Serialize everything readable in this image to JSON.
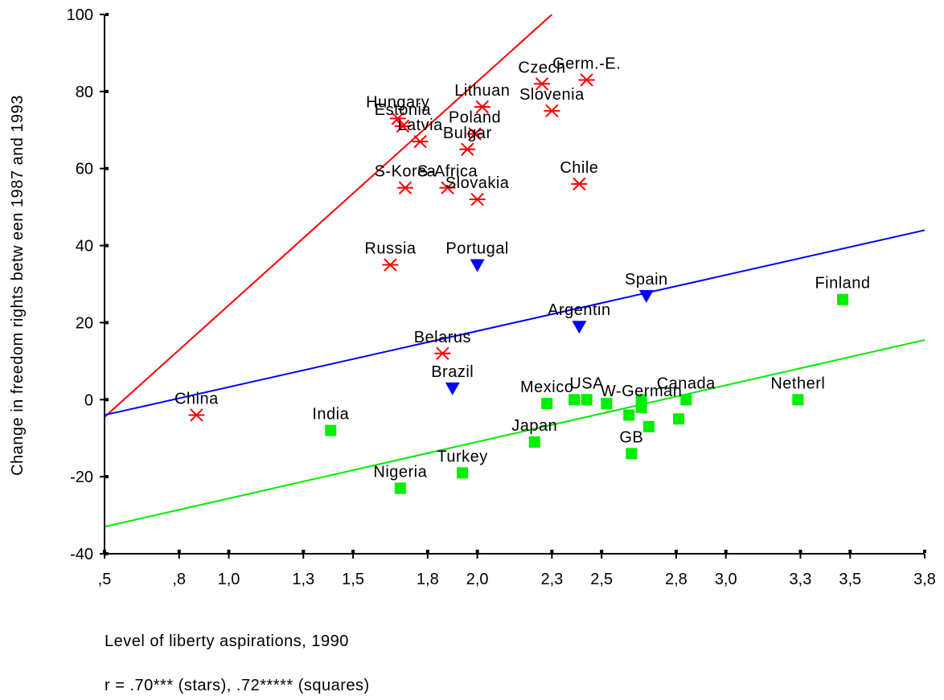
{
  "chart_data": {
    "type": "scatter",
    "xlabel": "Level of liberty aspirations, 1990",
    "ylabel": "Change in freedom rights betw een 1987 and 1993",
    "xlim": [
      0.5,
      3.8
    ],
    "ylim": [
      -40,
      100
    ],
    "x_ticks": [
      0.5,
      0.8,
      1.0,
      1.3,
      1.5,
      1.8,
      2.0,
      2.3,
      2.5,
      2.8,
      3.0,
      3.3,
      3.5,
      3.8
    ],
    "x_tick_labels": [
      ",5",
      ",8",
      "1,0",
      "1,3",
      "1,5",
      "1,8",
      "2,0",
      "2,3",
      "2,5",
      "2,8",
      "3,0",
      "3,3",
      "3,5",
      "3,8"
    ],
    "y_ticks": [
      -40,
      -20,
      0,
      20,
      40,
      60,
      80,
      100
    ],
    "y_tick_labels": [
      "-40",
      "-20",
      "0",
      "20",
      "40",
      "60",
      "80",
      "100"
    ],
    "grid": false,
    "colors": {
      "stars": "#ff0000",
      "triangles": "#0000ff",
      "squares": "#00ee00",
      "axis": "#000000"
    },
    "series": [
      {
        "marker": "star",
        "points": [
          {
            "label": "China",
            "x": 0.87,
            "y": -4
          },
          {
            "label": "Hungary",
            "x": 1.68,
            "y": 73
          },
          {
            "label": "Estonia",
            "x": 1.7,
            "y": 71
          },
          {
            "label": "Latvia",
            "x": 1.77,
            "y": 67
          },
          {
            "label": "Lithuan",
            "x": 2.02,
            "y": 76
          },
          {
            "label": "Poland",
            "x": 1.99,
            "y": 69
          },
          {
            "label": "Bulgar",
            "x": 1.96,
            "y": 65
          },
          {
            "label": "Czech",
            "x": 2.26,
            "y": 82
          },
          {
            "label": "Germ.-E.",
            "x": 2.44,
            "y": 83
          },
          {
            "label": "Slovenia",
            "x": 2.3,
            "y": 75
          },
          {
            "label": "S-Korea",
            "x": 1.71,
            "y": 55
          },
          {
            "label": "S-Africa",
            "x": 1.88,
            "y": 55
          },
          {
            "label": "Slovakia",
            "x": 2.0,
            "y": 52
          },
          {
            "label": "Chile",
            "x": 2.41,
            "y": 56
          },
          {
            "label": "Russia",
            "x": 1.65,
            "y": 35
          },
          {
            "label": "Belarus",
            "x": 1.86,
            "y": 12
          }
        ]
      },
      {
        "marker": "triangle",
        "points": [
          {
            "label": "Portugal",
            "x": 2.0,
            "y": 35
          },
          {
            "label": "Spain",
            "x": 2.68,
            "y": 27
          },
          {
            "label": "Argentin",
            "x": 2.41,
            "y": 19
          },
          {
            "label": "Brazil",
            "x": 1.9,
            "y": 3
          }
        ]
      },
      {
        "marker": "square",
        "points": [
          {
            "label": "Finland",
            "x": 3.47,
            "y": 26
          },
          {
            "label": "Netherl",
            "x": 3.29,
            "y": 0
          },
          {
            "label": "Canada",
            "x": 2.84,
            "y": 0
          },
          {
            "label": "USA",
            "x": 2.44,
            "y": 0
          },
          {
            "label": "",
            "x": 2.39,
            "y": 0
          },
          {
            "label": "Mexico",
            "x": 2.28,
            "y": -1
          },
          {
            "label": "",
            "x": 2.52,
            "y": -1
          },
          {
            "label": "W-German",
            "x": 2.66,
            "y": -2
          },
          {
            "label": "",
            "x": 2.66,
            "y": 0
          },
          {
            "label": "",
            "x": 2.61,
            "y": -4
          },
          {
            "label": "",
            "x": 2.69,
            "y": -7
          },
          {
            "label": "",
            "x": 2.81,
            "y": -5
          },
          {
            "label": "India",
            "x": 1.41,
            "y": -8
          },
          {
            "label": "Japan",
            "x": 2.23,
            "y": -11
          },
          {
            "label": "GB",
            "x": 2.62,
            "y": -14
          },
          {
            "label": "Turkey",
            "x": 1.94,
            "y": -19
          },
          {
            "label": "Nigeria",
            "x": 1.69,
            "y": -23
          }
        ]
      }
    ],
    "fit_lines": [
      {
        "series": "star",
        "color": "#ff0000",
        "from": [
          0.5,
          -4.5
        ],
        "to": [
          2.3,
          100
        ]
      },
      {
        "series": "triangle",
        "color": "#0000ff",
        "from": [
          0.5,
          -4
        ],
        "to": [
          3.8,
          44
        ]
      },
      {
        "series": "square",
        "color": "#00ee00",
        "from": [
          0.5,
          -33
        ],
        "to": [
          3.8,
          15.5
        ]
      }
    ]
  },
  "notes": {
    "xlabel_text": "Level of liberty aspirations, 1990",
    "correlation": "r = .70*** (stars), .72***** (squares)"
  }
}
